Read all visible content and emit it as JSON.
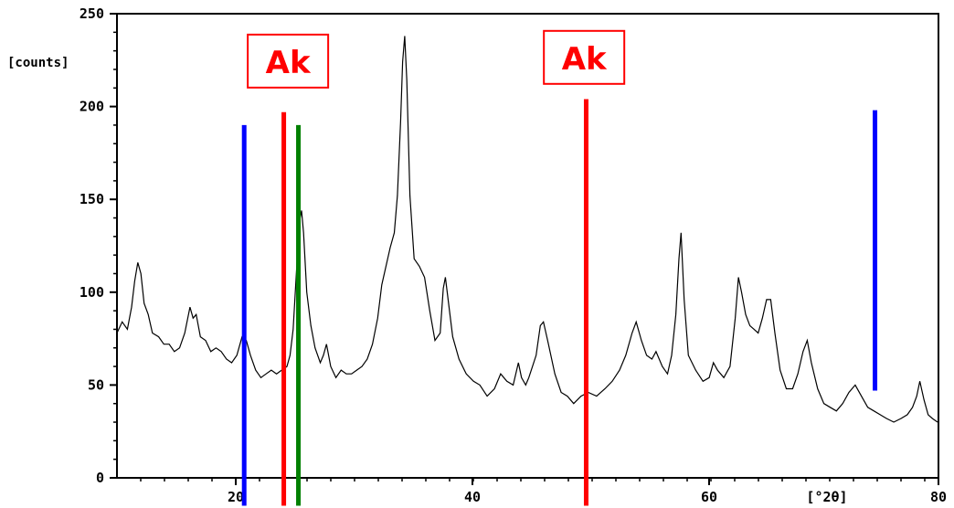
{
  "chart_data": {
    "type": "line",
    "title": "",
    "xlabel": "[°2θ]",
    "ylabel": "[counts]",
    "xlim": [
      10,
      80
    ],
    "ylim": [
      0,
      250
    ],
    "x_ticks": [
      {
        "value": 20,
        "label": "20"
      },
      {
        "value": 40,
        "label": "40"
      },
      {
        "value": 60,
        "label": "60"
      },
      {
        "value": 80,
        "label": "80"
      }
    ],
    "y_ticks": [
      {
        "value": 0,
        "label": "0"
      },
      {
        "value": 50,
        "label": "50"
      },
      {
        "value": 100,
        "label": "100"
      },
      {
        "value": 150,
        "label": "150"
      },
      {
        "value": 200,
        "label": "200"
      },
      {
        "value": 250,
        "label": "250"
      }
    ],
    "series": [
      {
        "points": [
          [
            10,
            78
          ],
          [
            10.5,
            84
          ],
          [
            11,
            80
          ],
          [
            11.4,
            92
          ],
          [
            11.7,
            106
          ],
          [
            12,
            116
          ],
          [
            12.3,
            110
          ],
          [
            12.6,
            94
          ],
          [
            13,
            88
          ],
          [
            13.4,
            78
          ],
          [
            14,
            76
          ],
          [
            14.5,
            72
          ],
          [
            15,
            72
          ],
          [
            15.5,
            68
          ],
          [
            16,
            70
          ],
          [
            16.5,
            78
          ],
          [
            17,
            92
          ],
          [
            17.3,
            86
          ],
          [
            17.6,
            88
          ],
          [
            18,
            76
          ],
          [
            18.5,
            74
          ],
          [
            19,
            68
          ],
          [
            19.5,
            70
          ],
          [
            20,
            68
          ],
          [
            20.5,
            64
          ],
          [
            21,
            62
          ],
          [
            21.5,
            66
          ],
          [
            22,
            76
          ],
          [
            22.4,
            74
          ],
          [
            22.8,
            66
          ],
          [
            23.3,
            58
          ],
          [
            23.8,
            54
          ],
          [
            24.3,
            56
          ],
          [
            24.8,
            58
          ],
          [
            25.3,
            56
          ],
          [
            25.8,
            58
          ],
          [
            26.3,
            60
          ],
          [
            26.6,
            66
          ],
          [
            26.9,
            80
          ],
          [
            27.2,
            110
          ],
          [
            27.5,
            138
          ],
          [
            27.7,
            144
          ],
          [
            27.9,
            132
          ],
          [
            28.2,
            100
          ],
          [
            28.6,
            82
          ],
          [
            29,
            70
          ],
          [
            29.5,
            62
          ],
          [
            29.8,
            66
          ],
          [
            30.1,
            72
          ],
          [
            30.5,
            60
          ],
          [
            31,
            54
          ],
          [
            31.5,
            58
          ],
          [
            32,
            56
          ],
          [
            32.5,
            56
          ],
          [
            33,
            58
          ],
          [
            33.5,
            60
          ],
          [
            34,
            64
          ],
          [
            34.5,
            72
          ],
          [
            35,
            86
          ],
          [
            35.4,
            104
          ],
          [
            35.8,
            114
          ],
          [
            36.2,
            124
          ],
          [
            36.6,
            132
          ],
          [
            36.9,
            152
          ],
          [
            37.2,
            192
          ],
          [
            37.4,
            224
          ],
          [
            37.6,
            238
          ],
          [
            37.8,
            214
          ],
          [
            38.1,
            152
          ],
          [
            38.5,
            118
          ],
          [
            39,
            114
          ],
          [
            39.5,
            108
          ],
          [
            40,
            90
          ],
          [
            40.5,
            74
          ],
          [
            41,
            78
          ],
          [
            41.3,
            102
          ],
          [
            41.5,
            108
          ],
          [
            41.8,
            94
          ],
          [
            42.2,
            76
          ],
          [
            42.8,
            64
          ],
          [
            43.5,
            56
          ],
          [
            44.2,
            52
          ],
          [
            44.8,
            50
          ],
          [
            45.5,
            44
          ],
          [
            46.2,
            48
          ],
          [
            46.8,
            56
          ],
          [
            47.4,
            52
          ],
          [
            48,
            50
          ],
          [
            48.5,
            62
          ],
          [
            48.8,
            54
          ],
          [
            49.2,
            50
          ],
          [
            49.5,
            54
          ],
          [
            50.2,
            66
          ],
          [
            50.6,
            82
          ],
          [
            50.9,
            84
          ],
          [
            51.3,
            74
          ],
          [
            52,
            56
          ],
          [
            52.6,
            46
          ],
          [
            53.2,
            44
          ],
          [
            53.8,
            40
          ],
          [
            54.5,
            44
          ],
          [
            55.2,
            46
          ],
          [
            56,
            44
          ],
          [
            56.8,
            48
          ],
          [
            57.5,
            52
          ],
          [
            58.2,
            58
          ],
          [
            58.8,
            66
          ],
          [
            59.4,
            78
          ],
          [
            59.8,
            84
          ],
          [
            60.3,
            74
          ],
          [
            60.8,
            66
          ],
          [
            61.3,
            64
          ],
          [
            61.7,
            68
          ],
          [
            62.3,
            60
          ],
          [
            62.8,
            56
          ],
          [
            63.2,
            66
          ],
          [
            63.6,
            88
          ],
          [
            63.9,
            118
          ],
          [
            64.1,
            132
          ],
          [
            64.4,
            96
          ],
          [
            64.8,
            66
          ],
          [
            65.5,
            58
          ],
          [
            66.2,
            52
          ],
          [
            66.8,
            54
          ],
          [
            67.2,
            62
          ],
          [
            67.6,
            58
          ],
          [
            68.2,
            54
          ],
          [
            68.8,
            60
          ],
          [
            69.3,
            86
          ],
          [
            69.6,
            108
          ],
          [
            69.9,
            100
          ],
          [
            70.3,
            88
          ],
          [
            70.7,
            82
          ],
          [
            71.1,
            80
          ],
          [
            71.5,
            78
          ],
          [
            71.9,
            86
          ],
          [
            72.3,
            96
          ],
          [
            72.7,
            96
          ],
          [
            73.1,
            78
          ],
          [
            73.6,
            58
          ],
          [
            74.2,
            48
          ],
          [
            74.8,
            48
          ],
          [
            75.3,
            56
          ],
          [
            75.8,
            68
          ],
          [
            76.2,
            74
          ],
          [
            76.6,
            62
          ],
          [
            77.2,
            48
          ],
          [
            77.8,
            40
          ],
          [
            78.4,
            38
          ],
          [
            79,
            36
          ],
          [
            79.6,
            40
          ],
          [
            80.2,
            46
          ],
          [
            80.8,
            50
          ],
          [
            81.4,
            44
          ],
          [
            82,
            38
          ],
          [
            82.6,
            36
          ],
          [
            83.2,
            34
          ],
          [
            83.8,
            32
          ],
          [
            84.5,
            30
          ],
          [
            85.2,
            32
          ],
          [
            85.8,
            34
          ],
          [
            86.3,
            38
          ],
          [
            86.7,
            44
          ],
          [
            87,
            52
          ],
          [
            87.4,
            42
          ],
          [
            87.8,
            34
          ],
          [
            88.2,
            32
          ],
          [
            88.7,
            30
          ]
        ]
      }
    ],
    "vertical_markers": [
      {
        "x": 22.2,
        "color": "#0000ff",
        "y_top": 190,
        "y_bottom": -15
      },
      {
        "x": 26.0,
        "color": "#ff0000",
        "y_top": 197,
        "y_bottom": -15
      },
      {
        "x": 27.4,
        "color": "#008000",
        "y_top": 190,
        "y_bottom": -15
      },
      {
        "x": 55.0,
        "color": "#ff0000",
        "y_top": 204,
        "y_bottom": -15
      },
      {
        "x": 82.7,
        "color": "#0000ff",
        "y_top": 198,
        "y_bottom": 47
      }
    ],
    "annotations": [
      {
        "text": "Ak",
        "x": 26.4,
        "y": 223,
        "color": "#ff0000"
      },
      {
        "text": "Ak",
        "x": 54.8,
        "y": 225,
        "color": "#ff0000"
      }
    ],
    "grid": false,
    "legend": "none"
  }
}
